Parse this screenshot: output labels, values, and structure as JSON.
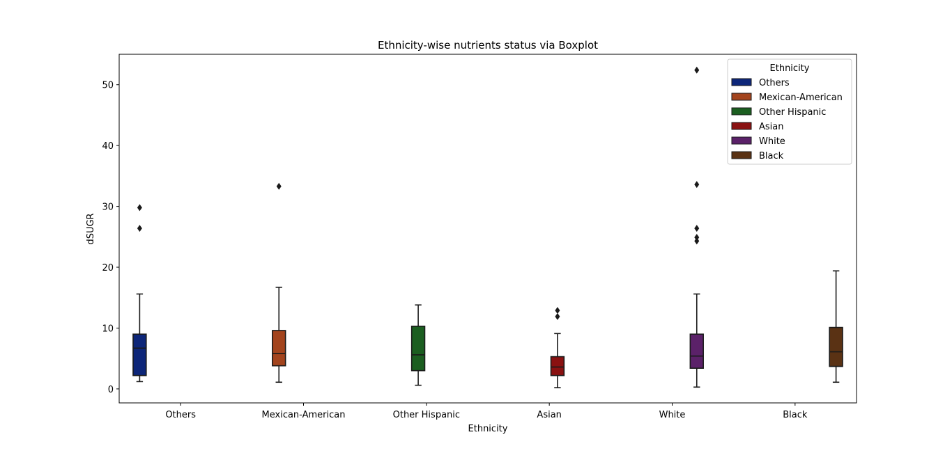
{
  "chart_data": {
    "type": "box",
    "title": "Ethnicity-wise nutrients status via Boxplot",
    "xlabel": "Ethnicity",
    "ylabel": "dSUGR",
    "ylim": [
      -2.3,
      55
    ],
    "yticks": [
      0,
      10,
      20,
      30,
      40,
      50
    ],
    "categories": [
      "Others",
      "Mexican-American",
      "Other Hispanic",
      "Asian",
      "White",
      "Black"
    ],
    "legend": {
      "title": "Ethnicity",
      "placement": "top-right",
      "entries": [
        "Others",
        "Mexican-American",
        "Other Hispanic",
        "Asian",
        "White",
        "Black"
      ]
    },
    "series": [
      {
        "name": "Others",
        "color": "#0d2679",
        "whisker_low": 1.2,
        "q1": 2.2,
        "median": 6.7,
        "q3": 9.0,
        "whisker_high": 15.6,
        "outliers": [
          26.4,
          29.8
        ]
      },
      {
        "name": "Mexican-American",
        "color": "#a3441d",
        "whisker_low": 1.1,
        "q1": 3.8,
        "median": 5.8,
        "q3": 9.6,
        "whisker_high": 16.7,
        "outliers": [
          33.3
        ]
      },
      {
        "name": "Other Hispanic",
        "color": "#1b5e20",
        "whisker_low": 0.6,
        "q1": 3.0,
        "median": 5.6,
        "q3": 10.3,
        "whisker_high": 13.8,
        "outliers": []
      },
      {
        "name": "Asian",
        "color": "#8a1111",
        "whisker_low": 0.2,
        "q1": 2.2,
        "median": 3.6,
        "q3": 5.3,
        "whisker_high": 9.1,
        "outliers": [
          11.9,
          12.9
        ]
      },
      {
        "name": "White",
        "color": "#5b2169",
        "whisker_low": 0.3,
        "q1": 3.4,
        "median": 5.4,
        "q3": 9.0,
        "whisker_high": 15.6,
        "outliers": [
          24.3,
          24.9,
          26.4,
          33.6,
          52.4
        ]
      },
      {
        "name": "Black",
        "color": "#5a3214",
        "whisker_low": 1.1,
        "q1": 3.7,
        "median": 6.1,
        "q3": 10.1,
        "whisker_high": 19.4,
        "outliers": []
      }
    ]
  }
}
